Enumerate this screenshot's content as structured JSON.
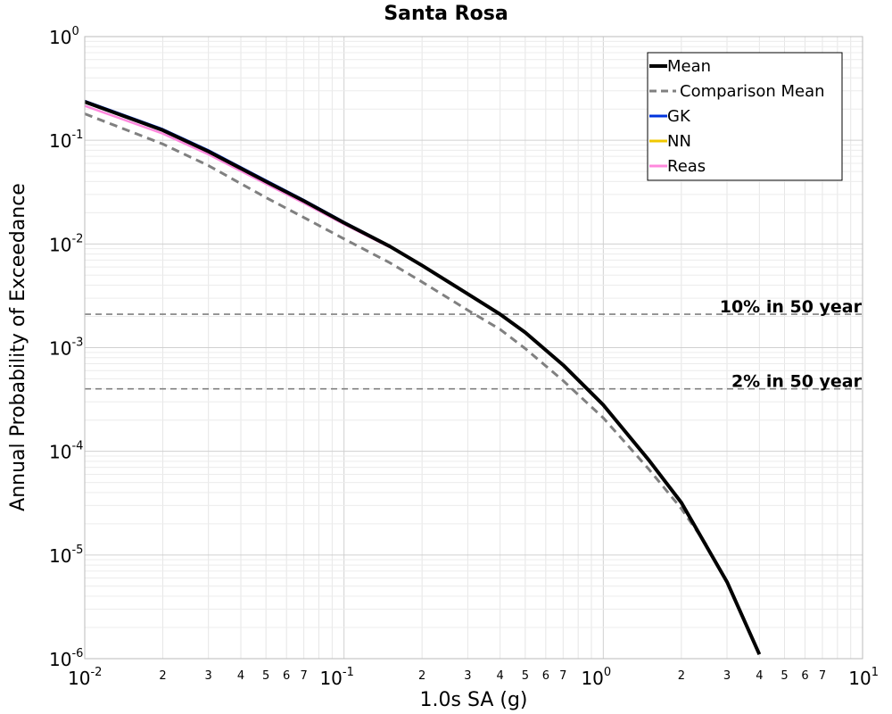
{
  "chart_data": {
    "type": "line",
    "title": "Santa Rosa",
    "xlabel": "1.0s SA (g)",
    "ylabel": "Annual Probability of Exceedance",
    "xscale": "log",
    "yscale": "log",
    "xlim": [
      0.01,
      10
    ],
    "ylim": [
      1e-06,
      1
    ],
    "grid": true,
    "legend_position": "top-right",
    "x_major_ticks": [
      {
        "base": "10",
        "exp": "-2"
      },
      {
        "base": "10",
        "exp": "-1"
      },
      {
        "base": "10",
        "exp": "0"
      },
      {
        "base": "10",
        "exp": "1"
      }
    ],
    "x_minor_tick_labels": [
      "2",
      "3",
      "4",
      "5",
      "6",
      "7"
    ],
    "y_major_ticks": [
      {
        "base": "10",
        "exp": "0"
      },
      {
        "base": "10",
        "exp": "-1"
      },
      {
        "base": "10",
        "exp": "-2"
      },
      {
        "base": "10",
        "exp": "-3"
      },
      {
        "base": "10",
        "exp": "-4"
      },
      {
        "base": "10",
        "exp": "-5"
      },
      {
        "base": "10",
        "exp": "-6"
      }
    ],
    "reference_lines": [
      {
        "label": "10% in 50 year",
        "y": 0.0021,
        "color": "#808080",
        "dash": "dashed"
      },
      {
        "label": "2% in 50 year",
        "y": 0.0004,
        "color": "#808080",
        "dash": "dashed"
      }
    ],
    "series": [
      {
        "name": "Mean",
        "color": "#000000",
        "style": "solid",
        "points": [
          [
            0.01,
            0.235
          ],
          [
            0.02,
            0.125
          ],
          [
            0.03,
            0.078
          ],
          [
            0.05,
            0.04
          ],
          [
            0.07,
            0.026
          ],
          [
            0.1,
            0.016
          ],
          [
            0.15,
            0.0095
          ],
          [
            0.2,
            0.0062
          ],
          [
            0.3,
            0.0033
          ],
          [
            0.4,
            0.0021
          ],
          [
            0.5,
            0.0014
          ],
          [
            0.7,
            0.00068
          ],
          [
            1.0,
            0.00028
          ],
          [
            1.5,
            8.2e-05
          ],
          [
            2.0,
            3.2e-05
          ],
          [
            3.0,
            5.5e-06
          ],
          [
            4.0,
            1.1e-06
          ]
        ]
      },
      {
        "name": "Comparison Mean",
        "color": "#808080",
        "style": "dashed",
        "points": [
          [
            0.01,
            0.18
          ],
          [
            0.02,
            0.092
          ],
          [
            0.03,
            0.057
          ],
          [
            0.05,
            0.028
          ],
          [
            0.07,
            0.018
          ],
          [
            0.1,
            0.0112
          ],
          [
            0.15,
            0.0066
          ],
          [
            0.2,
            0.0043
          ],
          [
            0.3,
            0.0023
          ],
          [
            0.4,
            0.0015
          ],
          [
            0.5,
            0.00098
          ],
          [
            0.7,
            0.00048
          ],
          [
            1.0,
            0.00021
          ],
          [
            1.5,
            6.7e-05
          ],
          [
            2.0,
            2.8e-05
          ],
          [
            2.5,
            1.25e-05
          ]
        ]
      },
      {
        "name": "GK",
        "color": "#0033dd",
        "style": "solid",
        "points": [
          [
            0.01,
            0.24
          ],
          [
            0.02,
            0.128
          ],
          [
            0.03,
            0.08
          ],
          [
            0.05,
            0.041
          ],
          [
            0.07,
            0.0265
          ],
          [
            0.1,
            0.0163
          ],
          [
            0.15,
            0.0096
          ]
        ]
      },
      {
        "name": "NN",
        "color": "#f0c800",
        "style": "solid",
        "points": []
      },
      {
        "name": "Reas",
        "color": "#ff88dd",
        "style": "solid",
        "points": [
          [
            0.01,
            0.215
          ],
          [
            0.02,
            0.116
          ],
          [
            0.03,
            0.073
          ],
          [
            0.05,
            0.038
          ],
          [
            0.07,
            0.0248
          ],
          [
            0.1,
            0.0155
          ],
          [
            0.15,
            0.0093
          ]
        ]
      }
    ]
  }
}
